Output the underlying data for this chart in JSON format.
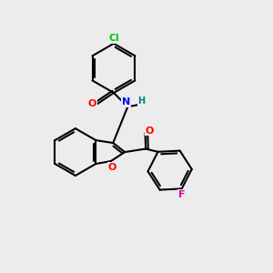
{
  "background_color": "#ececec",
  "bond_color": "#000000",
  "atom_colors": {
    "Cl": "#00cc00",
    "O": "#ff0000",
    "N": "#0000ff",
    "H": "#008080",
    "F": "#dd00aa"
  },
  "figsize": [
    3.0,
    3.0
  ],
  "dpi": 100
}
